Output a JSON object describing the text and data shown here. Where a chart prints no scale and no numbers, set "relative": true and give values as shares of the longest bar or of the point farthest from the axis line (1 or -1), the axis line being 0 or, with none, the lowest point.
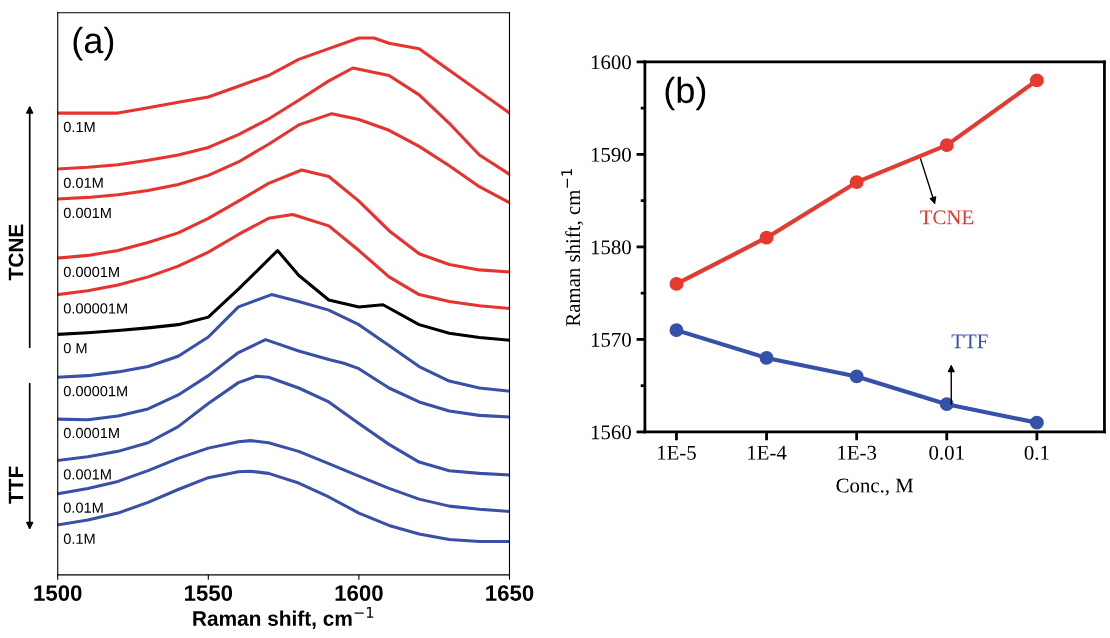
{
  "chart_data": [
    {
      "type": "line",
      "title": "(a)",
      "xlabel": "Raman shift, cm$^{−1}$",
      "relative": true,
      "xlim": [
        1500,
        1650
      ],
      "xticks": [
        1500,
        1550,
        1600,
        1650
      ],
      "tick_labels": "x",
      "grid": false,
      "legend": false,
      "marker": "none",
      "line_style": "solid",
      "annotations": [
        "TCNE",
        "TTF"
      ],
      "series": [
        {
          "name": "0.1M",
          "color": "#e8322e",
          "x": [
            1500,
            1510,
            1520,
            1530,
            1540,
            1550,
            1560,
            1570,
            1580,
            1590,
            1600,
            1605,
            1610,
            1620,
            1630,
            1640,
            1650
          ],
          "values": [
            0.86,
            0.86,
            0.86,
            0.87,
            0.88,
            0.89,
            0.91,
            0.93,
            0.96,
            0.98,
            1.0,
            1.0,
            0.99,
            0.98,
            0.94,
            0.9,
            0.86
          ]
        },
        {
          "name": "0.01M",
          "color": "#e8322e",
          "x": [
            1500,
            1510,
            1520,
            1530,
            1540,
            1550,
            1560,
            1570,
            1580,
            1590,
            1598,
            1610,
            1620,
            1630,
            1640,
            1650
          ],
          "values": [
            0.756,
            0.759,
            0.764,
            0.772,
            0.782,
            0.796,
            0.82,
            0.849,
            0.884,
            0.92,
            0.944,
            0.93,
            0.894,
            0.841,
            0.782,
            0.746
          ]
        },
        {
          "name": "0.001M",
          "color": "#e8322e",
          "x": [
            1500,
            1510,
            1520,
            1530,
            1540,
            1550,
            1560,
            1570,
            1580,
            1591,
            1600,
            1610,
            1620,
            1630,
            1640,
            1650
          ],
          "values": [
            0.7,
            0.703,
            0.708,
            0.716,
            0.727,
            0.744,
            0.769,
            0.802,
            0.838,
            0.859,
            0.848,
            0.828,
            0.798,
            0.762,
            0.723,
            0.693
          ]
        },
        {
          "name": "0.0001M",
          "color": "#e8322e",
          "x": [
            1500,
            1510,
            1520,
            1530,
            1540,
            1550,
            1560,
            1570,
            1581,
            1590,
            1600,
            1610,
            1620,
            1630,
            1640,
            1650
          ],
          "values": [
            0.59,
            0.595,
            0.604,
            0.619,
            0.637,
            0.664,
            0.696,
            0.729,
            0.754,
            0.742,
            0.696,
            0.641,
            0.598,
            0.578,
            0.568,
            0.564
          ]
        },
        {
          "name": "0.00001M",
          "color": "#e8322e",
          "x": [
            1500,
            1510,
            1520,
            1530,
            1540,
            1550,
            1560,
            1570,
            1578,
            1590,
            1600,
            1610,
            1620,
            1630,
            1640,
            1650
          ],
          "values": [
            0.522,
            0.529,
            0.54,
            0.555,
            0.575,
            0.601,
            0.634,
            0.664,
            0.671,
            0.65,
            0.604,
            0.555,
            0.522,
            0.509,
            0.501,
            0.496
          ]
        },
        {
          "name": "0 M",
          "color": "#000000",
          "x": [
            1500,
            1510,
            1520,
            1530,
            1540,
            1550,
            1560,
            1573,
            1580,
            1590,
            1600,
            1608,
            1620,
            1630,
            1640,
            1650
          ],
          "values": [
            0.448,
            0.451,
            0.455,
            0.46,
            0.466,
            0.48,
            0.532,
            0.604,
            0.558,
            0.512,
            0.499,
            0.503,
            0.466,
            0.45,
            0.442,
            0.437
          ]
        },
        {
          "name": "0.00001M",
          "color": "#3a4fa8",
          "x": [
            1500,
            1510,
            1520,
            1530,
            1540,
            1550,
            1560,
            1571,
            1580,
            1590,
            1600,
            1610,
            1620,
            1630,
            1640,
            1650
          ],
          "values": [
            0.368,
            0.371,
            0.378,
            0.388,
            0.407,
            0.443,
            0.499,
            0.522,
            0.509,
            0.493,
            0.466,
            0.427,
            0.388,
            0.361,
            0.348,
            0.342
          ]
        },
        {
          "name": "0.0001M",
          "color": "#3a4fa8",
          "x": [
            1500,
            1510,
            1520,
            1530,
            1540,
            1550,
            1560,
            1569,
            1580,
            1590,
            1595,
            1600,
            1610,
            1620,
            1630,
            1640,
            1650
          ],
          "values": [
            0.29,
            0.289,
            0.296,
            0.309,
            0.335,
            0.371,
            0.414,
            0.438,
            0.417,
            0.401,
            0.394,
            0.384,
            0.348,
            0.322,
            0.305,
            0.297,
            0.294
          ]
        },
        {
          "name": "0.001M",
          "color": "#3a4fa8",
          "x": [
            1500,
            1510,
            1520,
            1530,
            1540,
            1550,
            1560,
            1566,
            1570,
            1580,
            1590,
            1600,
            1610,
            1620,
            1630,
            1640,
            1650
          ],
          "values": [
            0.213,
            0.22,
            0.23,
            0.246,
            0.276,
            0.319,
            0.358,
            0.37,
            0.368,
            0.348,
            0.322,
            0.282,
            0.243,
            0.21,
            0.194,
            0.189,
            0.186
          ]
        },
        {
          "name": "0.01M",
          "color": "#3a4fa8",
          "x": [
            1500,
            1510,
            1520,
            1530,
            1540,
            1550,
            1560,
            1564,
            1570,
            1580,
            1590,
            1600,
            1610,
            1620,
            1630,
            1640,
            1650
          ],
          "values": [
            0.151,
            0.161,
            0.174,
            0.194,
            0.217,
            0.236,
            0.248,
            0.25,
            0.246,
            0.23,
            0.207,
            0.184,
            0.161,
            0.141,
            0.128,
            0.122,
            0.118
          ]
        },
        {
          "name": "0.1M",
          "color": "#3a4fa8",
          "x": [
            1500,
            1510,
            1520,
            1530,
            1540,
            1550,
            1560,
            1564,
            1570,
            1580,
            1590,
            1600,
            1610,
            1620,
            1630,
            1640,
            1650
          ],
          "values": [
            0.093,
            0.102,
            0.115,
            0.135,
            0.159,
            0.181,
            0.192,
            0.193,
            0.189,
            0.171,
            0.145,
            0.115,
            0.092,
            0.076,
            0.066,
            0.062,
            0.062
          ]
        }
      ]
    },
    {
      "type": "line",
      "title": "(b)",
      "xlabel": "Conc., M",
      "ylabel": "Raman shift, cm$^{−1}$",
      "categories": [
        "1E-5",
        "1E-4",
        "1E-3",
        "0.01",
        "0.1"
      ],
      "ylim": [
        1560,
        1600
      ],
      "yticks": [
        1560,
        1570,
        1580,
        1590,
        1600
      ],
      "grid": false,
      "legend": false,
      "marker": "circle",
      "line_style": "solid",
      "series": [
        {
          "name": "TCNE",
          "color": "#e53a2f",
          "values": [
            1576,
            1581,
            1587,
            1591,
            1598
          ]
        },
        {
          "name": "TTF",
          "color": "#3651a8",
          "values": [
            1571,
            1568,
            1566,
            1563,
            1561
          ]
        }
      ]
    }
  ]
}
